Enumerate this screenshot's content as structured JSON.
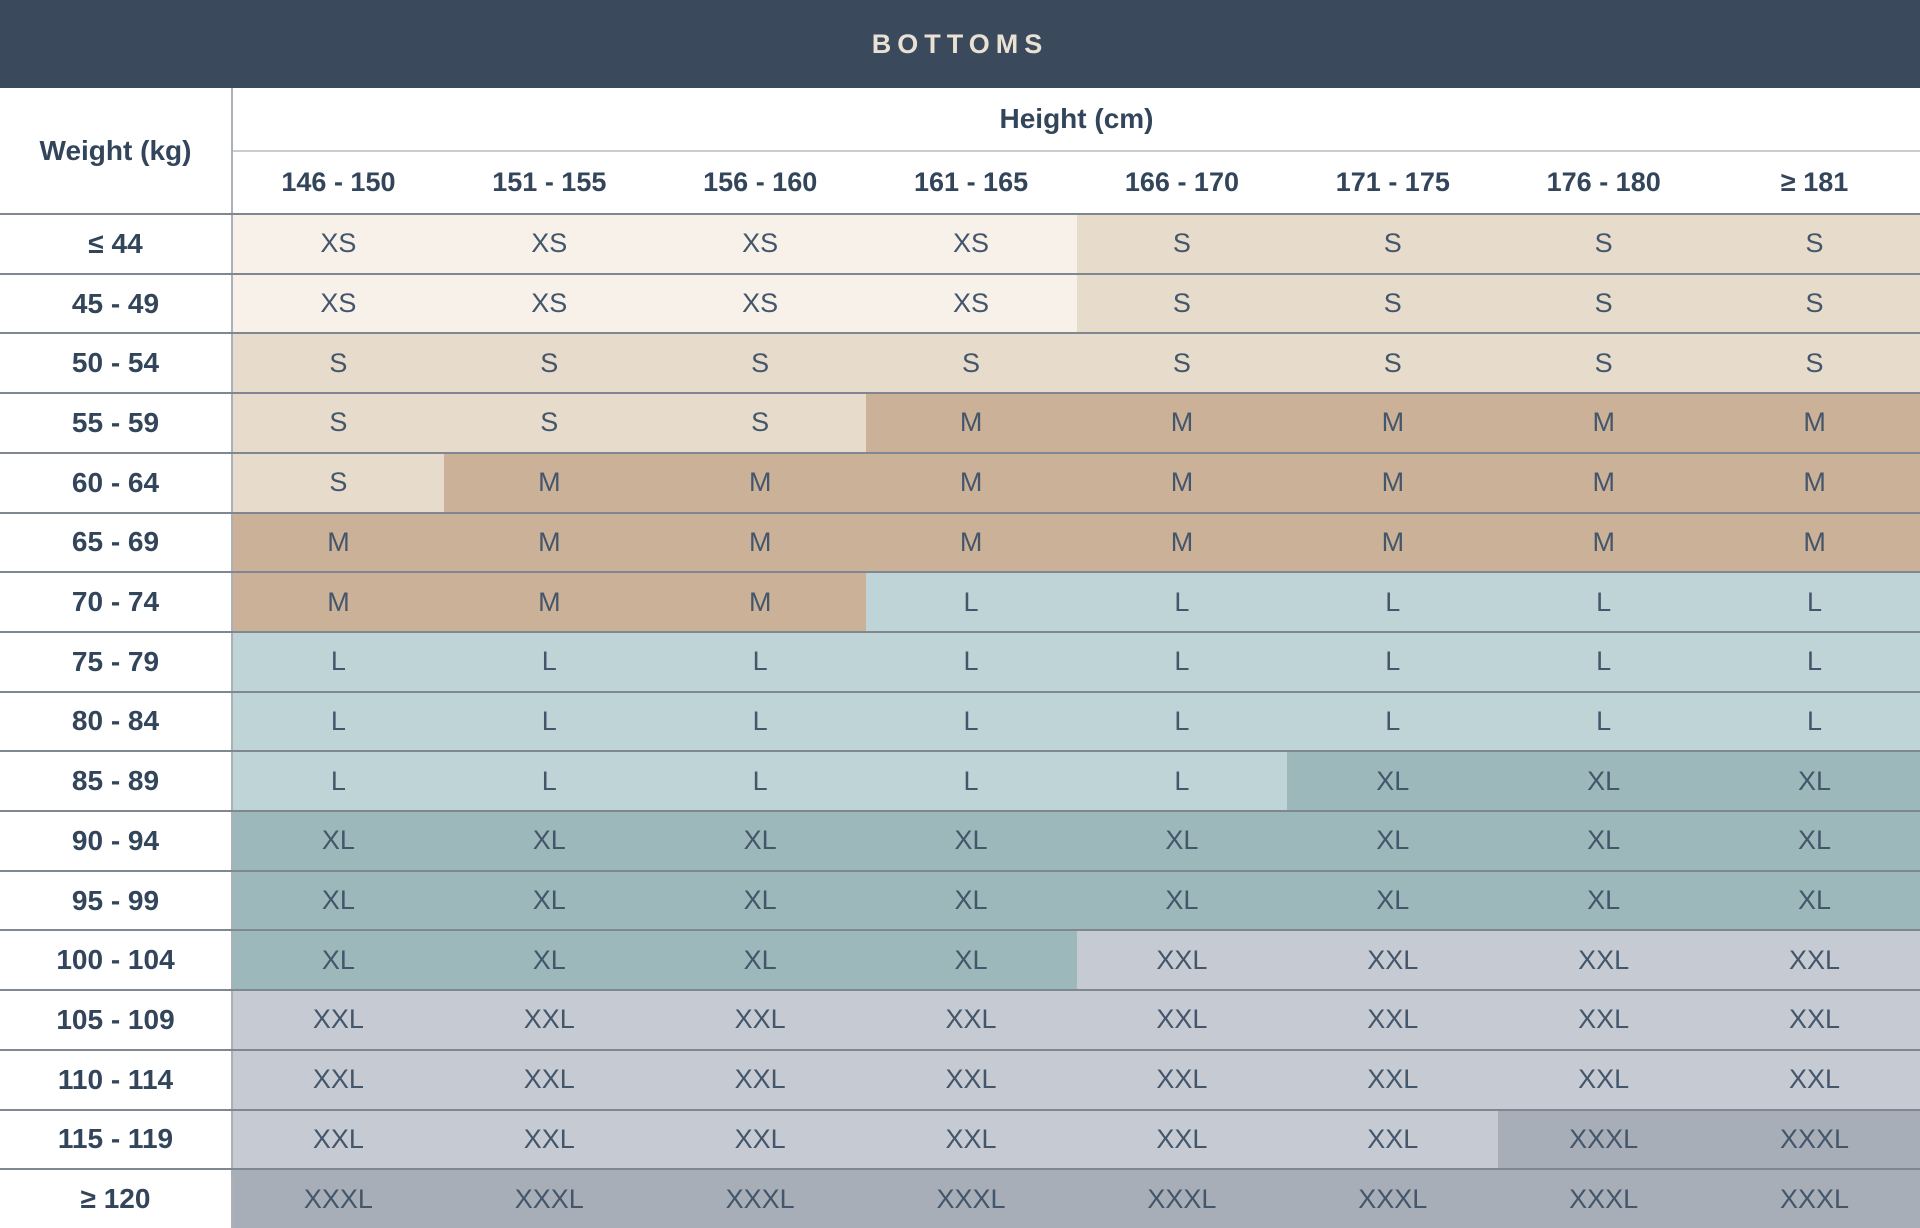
{
  "chart_data": {
    "type": "table",
    "title": "BOTTOMS",
    "row_axis_label": "Weight (kg)",
    "col_axis_label": "Height (cm)",
    "columns": [
      "146 - 150",
      "151 - 155",
      "156 - 160",
      "161 - 165",
      "166 - 170",
      "171 - 175",
      "176 - 180",
      "≥ 181"
    ],
    "rows": [
      {
        "weight": "≤ 44",
        "sizes": [
          "XS",
          "XS",
          "XS",
          "XS",
          "S",
          "S",
          "S",
          "S"
        ]
      },
      {
        "weight": "45 - 49",
        "sizes": [
          "XS",
          "XS",
          "XS",
          "XS",
          "S",
          "S",
          "S",
          "S"
        ]
      },
      {
        "weight": "50 - 54",
        "sizes": [
          "S",
          "S",
          "S",
          "S",
          "S",
          "S",
          "S",
          "S"
        ]
      },
      {
        "weight": "55 - 59",
        "sizes": [
          "S",
          "S",
          "S",
          "M",
          "M",
          "M",
          "M",
          "M"
        ]
      },
      {
        "weight": "60 - 64",
        "sizes": [
          "S",
          "M",
          "M",
          "M",
          "M",
          "M",
          "M",
          "M"
        ]
      },
      {
        "weight": "65 - 69",
        "sizes": [
          "M",
          "M",
          "M",
          "M",
          "M",
          "M",
          "M",
          "M"
        ]
      },
      {
        "weight": "70 - 74",
        "sizes": [
          "M",
          "M",
          "M",
          "L",
          "L",
          "L",
          "L",
          "L"
        ]
      },
      {
        "weight": "75 - 79",
        "sizes": [
          "L",
          "L",
          "L",
          "L",
          "L",
          "L",
          "L",
          "L"
        ]
      },
      {
        "weight": "80 - 84",
        "sizes": [
          "L",
          "L",
          "L",
          "L",
          "L",
          "L",
          "L",
          "L"
        ]
      },
      {
        "weight": "85 - 89",
        "sizes": [
          "L",
          "L",
          "L",
          "L",
          "L",
          "XL",
          "XL",
          "XL"
        ]
      },
      {
        "weight": "90 - 94",
        "sizes": [
          "XL",
          "XL",
          "XL",
          "XL",
          "XL",
          "XL",
          "XL",
          "XL"
        ]
      },
      {
        "weight": "95 - 99",
        "sizes": [
          "XL",
          "XL",
          "XL",
          "XL",
          "XL",
          "XL",
          "XL",
          "XL"
        ]
      },
      {
        "weight": "100 - 104",
        "sizes": [
          "XL",
          "XL",
          "XL",
          "XL",
          "XXL",
          "XXL",
          "XXL",
          "XXL"
        ]
      },
      {
        "weight": "105 - 109",
        "sizes": [
          "XXL",
          "XXL",
          "XXL",
          "XXL",
          "XXL",
          "XXL",
          "XXL",
          "XXL"
        ]
      },
      {
        "weight": "110 - 114",
        "sizes": [
          "XXL",
          "XXL",
          "XXL",
          "XXL",
          "XXL",
          "XXL",
          "XXL",
          "XXL"
        ]
      },
      {
        "weight": "115 - 119",
        "sizes": [
          "XXL",
          "XXL",
          "XXL",
          "XXL",
          "XXL",
          "XXL",
          "XXXL",
          "XXXL"
        ]
      },
      {
        "weight": "≥ 120",
        "sizes": [
          "XXXL",
          "XXXL",
          "XXXL",
          "XXXL",
          "XXXL",
          "XXXL",
          "XXXL",
          "XXXL"
        ]
      }
    ],
    "size_colors": {
      "XS": "#f7f1ea",
      "S": "#e7dccb",
      "M": "#cbb197",
      "L": "#bfd4d6",
      "XL": "#9cb8ba",
      "XXL": "#c6cbd3",
      "XXXL": "#a7aeb8"
    },
    "colors": {
      "header_bar": "#3b495d",
      "title_text": "#e9e1d3",
      "label_text": "#33455b",
      "cell_text": "#44566b",
      "row_border": "#7f8790",
      "col_border": "#aab0b6",
      "light_border": "#c9cdd1",
      "background": "#ffffff"
    }
  }
}
